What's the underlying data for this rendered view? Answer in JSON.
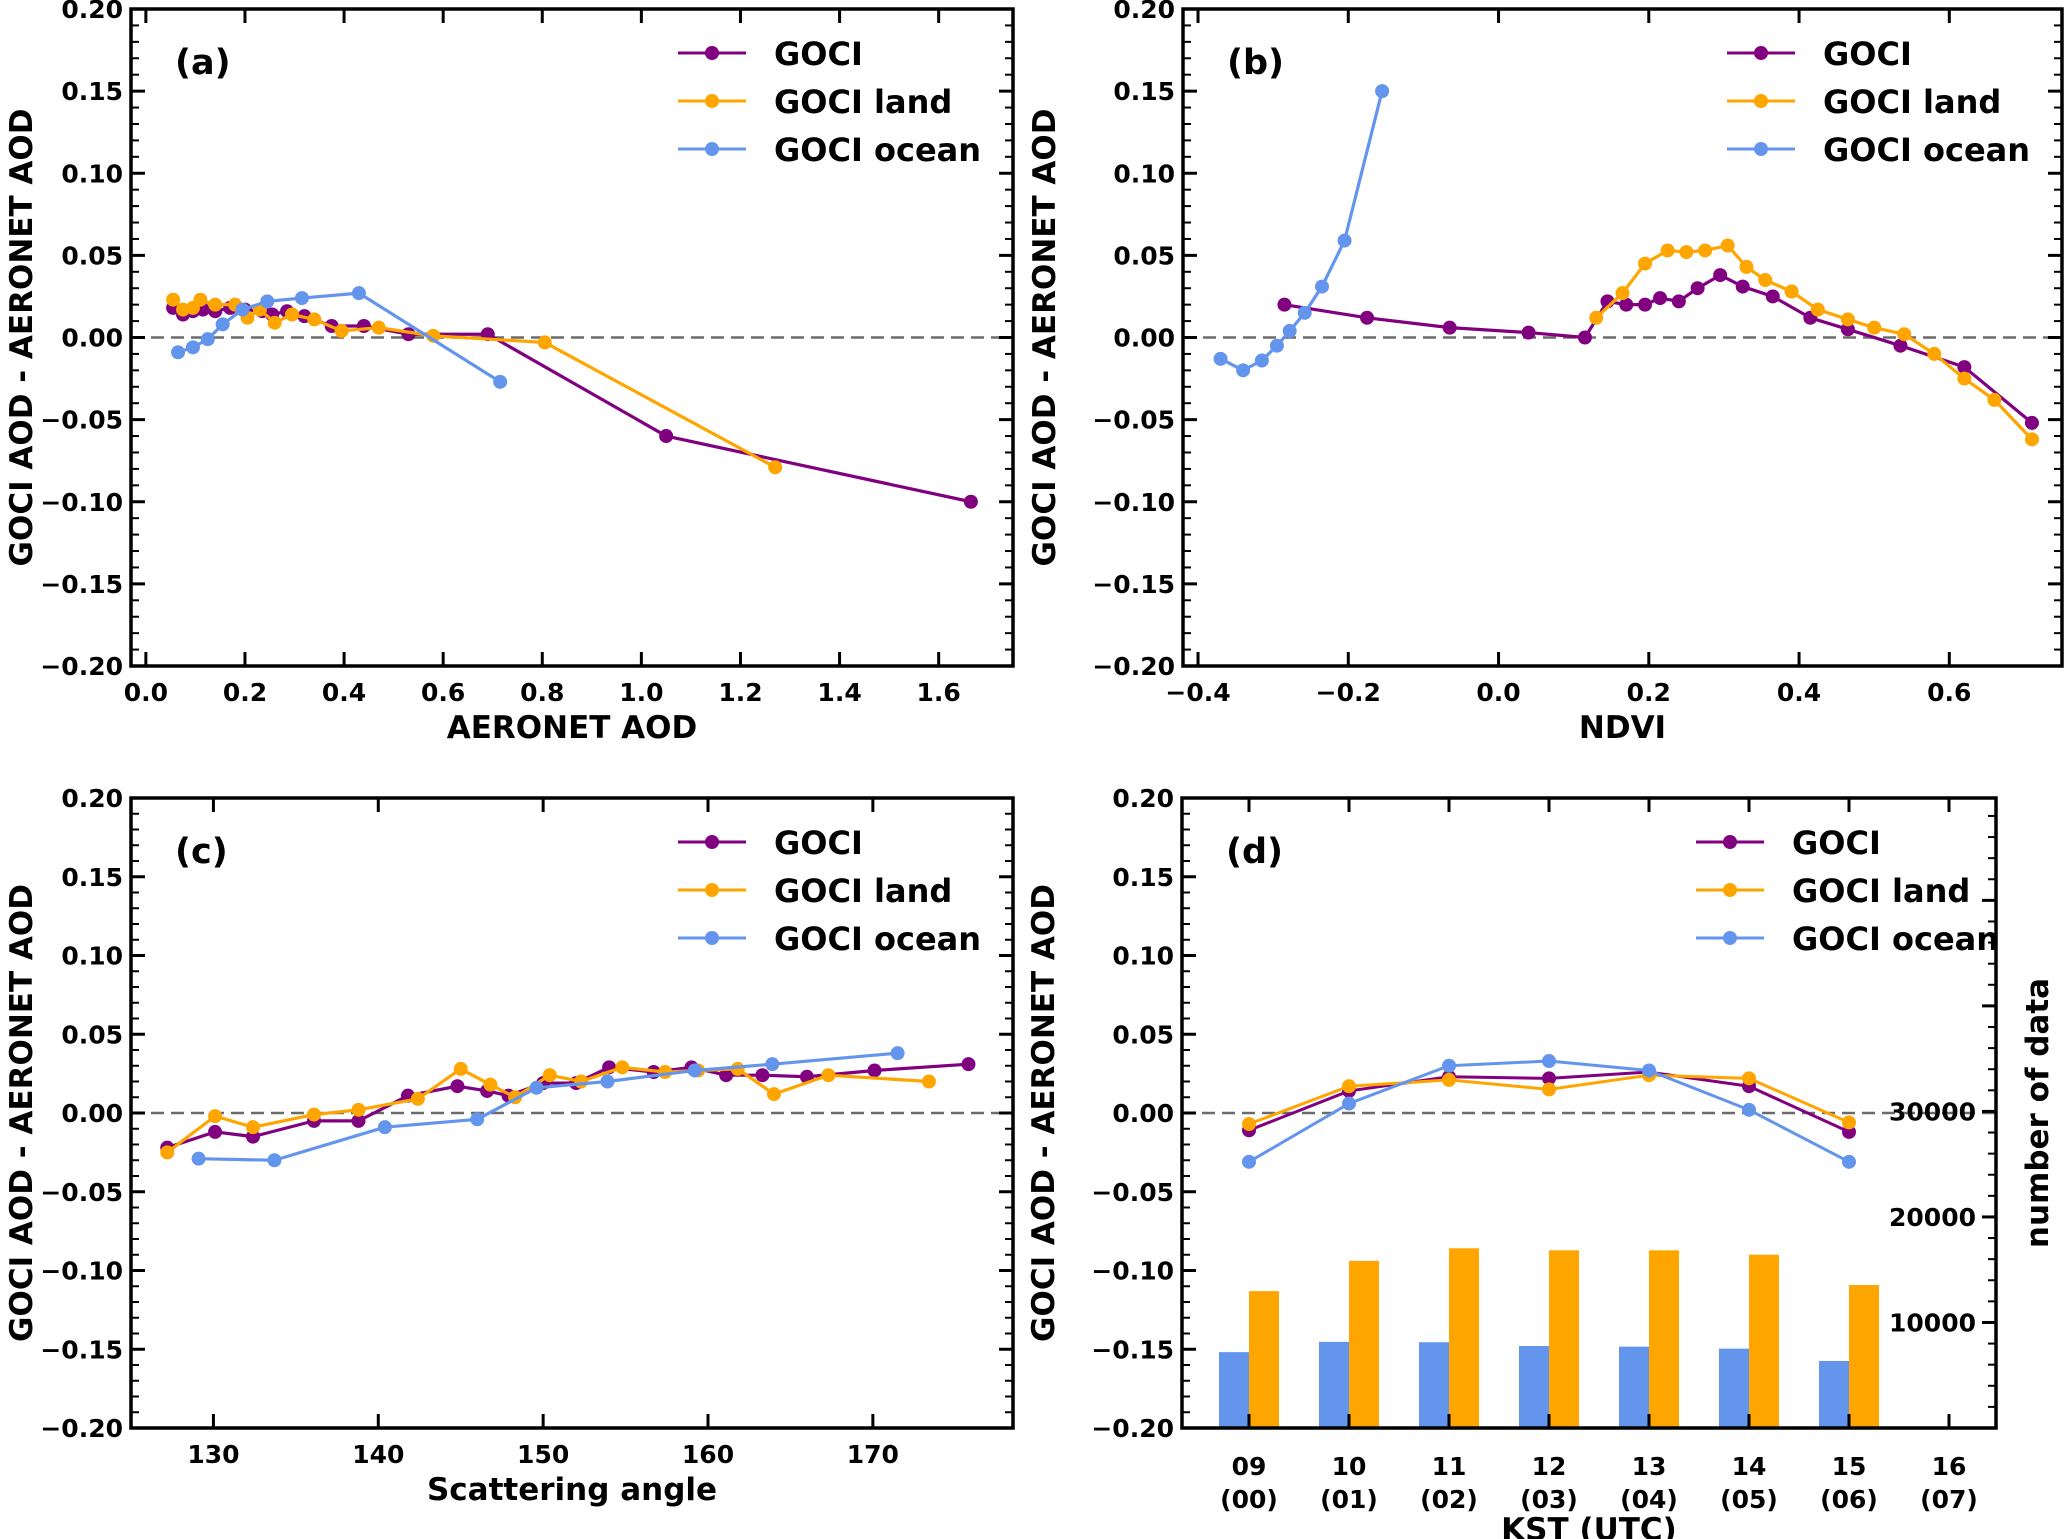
{
  "figure": {
    "series_styles": {
      "GOCI": {
        "label": "GOCI",
        "color": "#800080"
      },
      "GOCI land": {
        "label": "GOCI land",
        "color": "#FFA500"
      },
      "GOCI ocean": {
        "label": "GOCI ocean",
        "color": "#6495ED"
      }
    }
  },
  "chart_data": [
    {
      "id": "a",
      "type": "line",
      "panel_tag": "(a)",
      "title": "",
      "xlabel": "AERONET AOD",
      "ylabel": "GOCI AOD - AERONET AOD",
      "xlim": [
        -0.03,
        1.75
      ],
      "ylim": [
        -0.2,
        0.2
      ],
      "xticks": [
        0.0,
        0.2,
        0.4,
        0.6,
        0.8,
        1.0,
        1.2,
        1.4,
        1.6
      ],
      "xtick_labels": [
        "0.0",
        "0.2",
        "0.4",
        "0.6",
        "0.8",
        "1.0",
        "1.2",
        "1.4",
        "1.6"
      ],
      "yticks": [
        0.2,
        0.15,
        0.1,
        0.05,
        0.0,
        -0.05,
        -0.1,
        -0.15,
        -0.2
      ],
      "ytick_labels": [
        "0.20",
        "0.15",
        "0.10",
        "0.05",
        "0.00",
        "−0.05",
        "−0.10",
        "−0.15",
        "−0.20"
      ],
      "reference_line": 0.0,
      "legend": {
        "placement": "top-right",
        "entries": [
          "GOCI",
          "GOCI land",
          "GOCI ocean"
        ]
      },
      "series": [
        {
          "name": "GOCI",
          "x": [
            0.055,
            0.075,
            0.095,
            0.115,
            0.14,
            0.17,
            0.2,
            0.235,
            0.255,
            0.285,
            0.32,
            0.375,
            0.44,
            0.53,
            0.69,
            1.05,
            1.665
          ],
          "y": [
            0.018,
            0.014,
            0.016,
            0.017,
            0.016,
            0.018,
            0.017,
            0.016,
            0.014,
            0.016,
            0.013,
            0.007,
            0.007,
            0.002,
            0.002,
            -0.06,
            -0.1
          ]
        },
        {
          "name": "GOCI land",
          "x": [
            0.055,
            0.075,
            0.095,
            0.11,
            0.14,
            0.18,
            0.205,
            0.23,
            0.26,
            0.295,
            0.34,
            0.395,
            0.47,
            0.58,
            0.805,
            1.27
          ],
          "y": [
            0.023,
            0.017,
            0.018,
            0.023,
            0.02,
            0.02,
            0.012,
            0.017,
            0.009,
            0.014,
            0.011,
            0.004,
            0.006,
            0.001,
            -0.003,
            -0.079
          ]
        },
        {
          "name": "GOCI ocean",
          "x": [
            0.065,
            0.095,
            0.125,
            0.155,
            0.195,
            0.245,
            0.315,
            0.43,
            0.715
          ],
          "y": [
            -0.009,
            -0.006,
            -0.001,
            0.008,
            0.017,
            0.022,
            0.024,
            0.027,
            -0.027
          ]
        }
      ]
    },
    {
      "id": "b",
      "type": "line",
      "panel_tag": "(b)",
      "title": "",
      "xlabel": "NDVI",
      "ylabel": "GOCI AOD - AERONET AOD",
      "xlim": [
        -0.42,
        0.75
      ],
      "ylim": [
        -0.2,
        0.2
      ],
      "xticks": [
        -0.4,
        -0.2,
        0.0,
        0.2,
        0.4,
        0.6
      ],
      "xtick_labels": [
        "−0.4",
        "−0.2",
        "0.0",
        "0.2",
        "0.4",
        "0.6"
      ],
      "yticks": [
        0.2,
        0.15,
        0.1,
        0.05,
        0.0,
        -0.05,
        -0.1,
        -0.15,
        -0.2
      ],
      "ytick_labels": [
        "0.20",
        "0.15",
        "0.10",
        "0.05",
        "0.00",
        "−0.05",
        "−0.10",
        "−0.15",
        "−0.20"
      ],
      "reference_line": 0.0,
      "legend": {
        "placement": "top-right",
        "entries": [
          "GOCI",
          "GOCI land",
          "GOCI ocean"
        ]
      },
      "series": [
        {
          "name": "GOCI",
          "x": [
            -0.285,
            -0.175,
            -0.065,
            0.04,
            0.115,
            0.145,
            0.17,
            0.195,
            0.215,
            0.24,
            0.265,
            0.295,
            0.325,
            0.365,
            0.415,
            0.465,
            0.535,
            0.62,
            0.71
          ],
          "y": [
            0.02,
            0.012,
            0.006,
            0.003,
            0.0,
            0.022,
            0.02,
            0.02,
            0.024,
            0.022,
            0.03,
            0.038,
            0.031,
            0.025,
            0.012,
            0.005,
            -0.005,
            -0.018,
            -0.052
          ]
        },
        {
          "name": "GOCI land",
          "x": [
            0.13,
            0.165,
            0.195,
            0.225,
            0.25,
            0.275,
            0.305,
            0.33,
            0.355,
            0.39,
            0.425,
            0.465,
            0.5,
            0.54,
            0.58,
            0.62,
            0.66,
            0.71
          ],
          "y": [
            0.012,
            0.027,
            0.045,
            0.053,
            0.052,
            0.053,
            0.056,
            0.043,
            0.035,
            0.028,
            0.017,
            0.011,
            0.006,
            0.002,
            -0.01,
            -0.025,
            -0.038,
            -0.062
          ]
        },
        {
          "name": "GOCI ocean",
          "x": [
            -0.37,
            -0.34,
            -0.315,
            -0.295,
            -0.278,
            -0.258,
            -0.235,
            -0.205,
            -0.155
          ],
          "y": [
            -0.013,
            -0.02,
            -0.014,
            -0.005,
            0.004,
            0.015,
            0.031,
            0.059,
            0.15
          ]
        }
      ]
    },
    {
      "id": "c",
      "type": "line",
      "panel_tag": "(c)",
      "title": "",
      "xlabel": "Scattering angle",
      "ylabel": "GOCI AOD - AERONET AOD",
      "xlim": [
        125.0,
        178.5
      ],
      "ylim": [
        -0.2,
        0.2
      ],
      "xticks": [
        130,
        140,
        150,
        160,
        170
      ],
      "xtick_labels": [
        "130",
        "140",
        "150",
        "160",
        "170"
      ],
      "yticks": [
        0.2,
        0.15,
        0.1,
        0.05,
        0.0,
        -0.05,
        -0.1,
        -0.15,
        -0.2
      ],
      "ytick_labels": [
        "0.20",
        "0.15",
        "0.10",
        "0.05",
        "0.00",
        "−0.05",
        "−0.10",
        "−0.15",
        "−0.20"
      ],
      "reference_line": 0.0,
      "legend": {
        "placement": "top-right",
        "entries": [
          "GOCI",
          "GOCI land",
          "GOCI ocean"
        ]
      },
      "series": [
        {
          "name": "GOCI",
          "x": [
            127.2,
            130.1,
            132.4,
            136.1,
            138.8,
            141.8,
            144.8,
            146.6,
            147.9,
            150.0,
            152.0,
            154.0,
            156.7,
            159.0,
            161.1,
            163.3,
            166.0,
            170.1,
            175.8
          ],
          "y": [
            -0.022,
            -0.012,
            -0.015,
            -0.005,
            -0.005,
            0.011,
            0.017,
            0.014,
            0.011,
            0.019,
            0.019,
            0.029,
            0.026,
            0.029,
            0.024,
            0.024,
            0.023,
            0.027,
            0.031
          ]
        },
        {
          "name": "GOCI land",
          "x": [
            127.2,
            130.1,
            132.4,
            136.1,
            138.8,
            142.4,
            145.0,
            146.8,
            148.3,
            150.4,
            152.3,
            154.8,
            157.4,
            159.4,
            161.8,
            164.0,
            167.3,
            173.4
          ],
          "y": [
            -0.025,
            -0.002,
            -0.009,
            -0.001,
            0.002,
            0.009,
            0.028,
            0.018,
            0.01,
            0.024,
            0.02,
            0.029,
            0.026,
            0.027,
            0.028,
            0.012,
            0.024,
            0.02
          ]
        },
        {
          "name": "GOCI ocean",
          "x": [
            129.1,
            133.7,
            140.4,
            146.0,
            149.6,
            153.9,
            159.2,
            163.9,
            171.5
          ],
          "y": [
            -0.029,
            -0.03,
            -0.009,
            -0.004,
            0.016,
            0.02,
            0.027,
            0.031,
            0.038
          ]
        }
      ]
    },
    {
      "id": "d",
      "type": "line+bar",
      "panel_tag": "(d)",
      "title": "",
      "xlabel": "KST (UTC)",
      "ylabel": "GOCI AOD - AERONET AOD",
      "ylabel_right": "number of data",
      "categories": [
        "09\n(00)",
        "10\n(01)",
        "11\n(02)",
        "12\n(03)",
        "13\n(04)",
        "14\n(05)",
        "15\n(06)",
        "16\n(07)"
      ],
      "category_lines": [
        [
          "09",
          "(00)"
        ],
        [
          "10",
          "(01)"
        ],
        [
          "11",
          "(02)"
        ],
        [
          "12",
          "(03)"
        ],
        [
          "13",
          "(04)"
        ],
        [
          "14",
          "(05)"
        ],
        [
          "15",
          "(06)"
        ],
        [
          "16",
          "(07)"
        ]
      ],
      "ylim": [
        -0.2,
        0.2
      ],
      "ylim_right": [
        0,
        59700
      ],
      "yticks": [
        0.2,
        0.15,
        0.1,
        0.05,
        0.0,
        -0.05,
        -0.1,
        -0.15,
        -0.2
      ],
      "ytick_labels": [
        "0.20",
        "0.15",
        "0.10",
        "0.05",
        "0.00",
        "−0.05",
        "−0.10",
        "−0.15",
        "−0.20"
      ],
      "yticks_right": [
        10000,
        20000,
        30000
      ],
      "ytick_labels_right": [
        "10000",
        "20000",
        "30000"
      ],
      "reference_line": 0.0,
      "legend": {
        "placement": "top-right",
        "entries": [
          "GOCI",
          "GOCI land",
          "GOCI ocean"
        ]
      },
      "series": [
        {
          "name": "GOCI",
          "values": [
            -0.011,
            0.014,
            0.023,
            0.022,
            0.026,
            0.017,
            -0.012,
            null
          ]
        },
        {
          "name": "GOCI land",
          "values": [
            -0.007,
            0.017,
            0.021,
            0.015,
            0.024,
            0.022,
            -0.006,
            null
          ]
        },
        {
          "name": "GOCI ocean",
          "values": [
            -0.031,
            0.006,
            0.03,
            0.033,
            0.027,
            0.002,
            -0.031,
            null
          ]
        }
      ],
      "bar_series": [
        {
          "name": "GOCI ocean",
          "axis": "right",
          "values": [
            7190,
            8160,
            8130,
            7770,
            7710,
            7520,
            6350,
            0
          ]
        },
        {
          "name": "GOCI land",
          "axis": "right",
          "values": [
            12970,
            15840,
            17030,
            16840,
            16840,
            16420,
            13550,
            0
          ]
        }
      ]
    }
  ]
}
